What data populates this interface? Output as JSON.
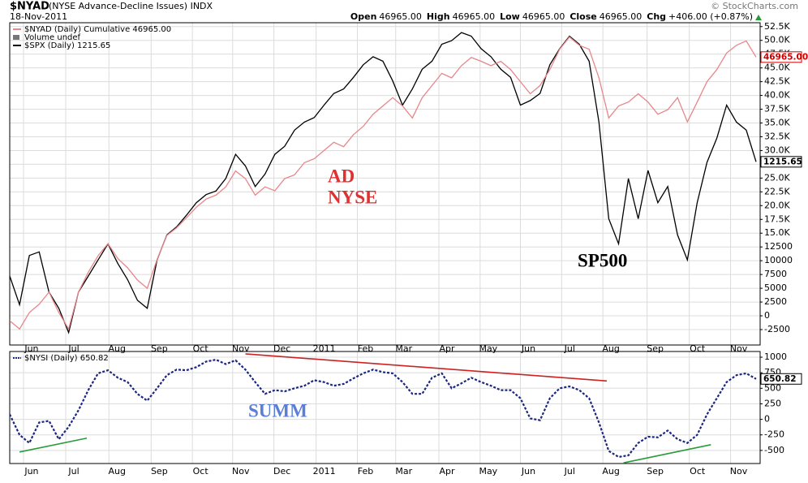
{
  "chart_data": [
    {
      "type": "line",
      "title": "$NYAD",
      "subtitle": "(NYSE Advance-Decline Issues) INDX",
      "date": "18-Nov-2011",
      "source": "© StockCharts.com",
      "quote": [
        {
          "label": "Open",
          "value": "46965.00"
        },
        {
          "label": "High",
          "value": "46965.00"
        },
        {
          "label": "Low",
          "value": "46965.00"
        },
        {
          "label": "Close",
          "value": "46965.00"
        },
        {
          "label": "Chg",
          "value": "+406.00 (+0.87%)"
        }
      ],
      "legend_notes": [
        "Volume undef"
      ],
      "grid": true,
      "xlim": [
        0,
        76
      ],
      "xticks": [
        {
          "value": 1.4,
          "label": "Jun"
        },
        {
          "value": 5.7,
          "label": "Jul"
        },
        {
          "value": 10.1,
          "label": "Aug"
        },
        {
          "value": 14.4,
          "label": "Sep"
        },
        {
          "value": 18.6,
          "label": "Oct"
        },
        {
          "value": 22.7,
          "label": "Nov"
        },
        {
          "value": 26.9,
          "label": "Dec"
        },
        {
          "value": 31.2,
          "label": "2011"
        },
        {
          "value": 35.4,
          "label": "Feb"
        },
        {
          "value": 39.3,
          "label": "Mar"
        },
        {
          "value": 43.7,
          "label": "Apr"
        },
        {
          "value": 47.9,
          "label": "May"
        },
        {
          "value": 52,
          "label": "Jun"
        },
        {
          "value": 56.2,
          "label": "Jul"
        },
        {
          "value": 60.4,
          "label": "Aug"
        },
        {
          "value": 64.9,
          "label": "Sep"
        },
        {
          "value": 69.2,
          "label": "Oct"
        },
        {
          "value": 73.4,
          "label": "Nov"
        }
      ],
      "ylim": [
        -5300,
        53200
      ],
      "yticks": [
        {
          "value": 52500,
          "label": "52.5K"
        },
        {
          "value": 50000,
          "label": "50.0K"
        },
        {
          "value": 47500,
          "label": "47.5K"
        },
        {
          "value": 45000,
          "label": "45.0K"
        },
        {
          "value": 42500,
          "label": "42.5K"
        },
        {
          "value": 40000,
          "label": "40.0K"
        },
        {
          "value": 37500,
          "label": "37.5K"
        },
        {
          "value": 35000,
          "label": "35.0K"
        },
        {
          "value": 32500,
          "label": "32.5K"
        },
        {
          "value": 30000,
          "label": "30.0K"
        },
        {
          "value": 27500,
          "label": "27.5K"
        },
        {
          "value": 25000,
          "label": "25.0K"
        },
        {
          "value": 22500,
          "label": "22.5K"
        },
        {
          "value": 20000,
          "label": "20.0K"
        },
        {
          "value": 17500,
          "label": "17.5K"
        },
        {
          "value": 15000,
          "label": "15.0K"
        },
        12500,
        10000,
        7500,
        5000,
        2500,
        0,
        -2500
      ],
      "y2lim": [
        1011,
        1371
      ],
      "series": [
        {
          "name": "$NYAD (Daily) Cumulative 46965.00",
          "color": "#e8868a",
          "last_label": "46965.00",
          "label_color": "#cc0000",
          "values": [
            -900,
            -2400,
            600,
            2100,
            4300,
            600,
            -2400,
            4300,
            7900,
            10900,
            13100,
            10400,
            8700,
            6500,
            5000,
            10200,
            14600,
            16000,
            17800,
            19700,
            21200,
            21900,
            23400,
            26300,
            24900,
            21900,
            23400,
            22700,
            24900,
            25600,
            27800,
            28500,
            30000,
            31500,
            30700,
            32900,
            34400,
            36600,
            38100,
            39600,
            38100,
            35900,
            39600,
            41800,
            44000,
            43200,
            45400,
            46900,
            46200,
            45400,
            46200,
            44700,
            42500,
            40300,
            41800,
            44700,
            48400,
            50600,
            49100,
            48400,
            43200,
            35900,
            38100,
            38800,
            40300,
            38800,
            36600,
            37400,
            39600,
            35200,
            38800,
            42500,
            44700,
            47700,
            49100,
            49900,
            46965
          ]
        },
        {
          "name": "$SPX (Daily) 1215.65",
          "color": "#000000",
          "axis": "y2",
          "last_label": "1215.65",
          "label_color": "#000000",
          "values": [
            1088,
            1056,
            1111,
            1115,
            1070,
            1052,
            1025,
            1070,
            1088,
            1106,
            1124,
            1102,
            1084,
            1061,
            1052,
            1106,
            1134,
            1143,
            1156,
            1170,
            1179,
            1183,
            1197,
            1224,
            1211,
            1188,
            1202,
            1224,
            1233,
            1251,
            1260,
            1265,
            1279,
            1292,
            1297,
            1310,
            1324,
            1333,
            1328,
            1306,
            1279,
            1297,
            1319,
            1328,
            1347,
            1351,
            1360,
            1356,
            1342,
            1333,
            1319,
            1310,
            1279,
            1284,
            1292,
            1324,
            1342,
            1356,
            1347,
            1328,
            1260,
            1152,
            1124,
            1197,
            1152,
            1206,
            1170,
            1188,
            1134,
            1106,
            1170,
            1215,
            1242,
            1279,
            1260,
            1251,
            1215.65
          ]
        }
      ],
      "annotations": [
        {
          "text": "AD",
          "color": "#e03030"
        },
        {
          "text": "NYSE",
          "color": "#e03030"
        },
        {
          "text": "SP500",
          "color": "#000000"
        }
      ]
    },
    {
      "type": "line",
      "grid": true,
      "xlim": [
        0,
        76
      ],
      "xticks": [
        {
          "value": 1.4,
          "label": "Jun"
        },
        {
          "value": 5.7,
          "label": "Jul"
        },
        {
          "value": 10.1,
          "label": "Aug"
        },
        {
          "value": 14.4,
          "label": "Sep"
        },
        {
          "value": 18.6,
          "label": "Oct"
        },
        {
          "value": 22.7,
          "label": "Nov"
        },
        {
          "value": 26.9,
          "label": "Dec"
        },
        {
          "value": 31.2,
          "label": "2011"
        },
        {
          "value": 35.4,
          "label": "Feb"
        },
        {
          "value": 39.3,
          "label": "Mar"
        },
        {
          "value": 43.7,
          "label": "Apr"
        },
        {
          "value": 47.9,
          "label": "May"
        },
        {
          "value": 52,
          "label": "Jun"
        },
        {
          "value": 56.2,
          "label": "Jul"
        },
        {
          "value": 60.4,
          "label": "Aug"
        },
        {
          "value": 64.9,
          "label": "Sep"
        },
        {
          "value": 69.2,
          "label": "Oct"
        },
        {
          "value": 73.4,
          "label": "Nov"
        }
      ],
      "ylim": [
        -711,
        1092
      ],
      "yticks": [
        1000,
        750,
        500,
        250,
        0,
        -250,
        -500
      ],
      "series": [
        {
          "name": "$NYSI (Daily) 650.82",
          "color": "#1c2680",
          "dashed": true,
          "last_label": "650.82",
          "label_color": "#000000",
          "values": [
            80,
            -250,
            -380,
            -50,
            -25,
            -320,
            -120,
            145,
            470,
            740,
            790,
            670,
            600,
            410,
            300,
            500,
            710,
            800,
            790,
            840,
            930,
            960,
            890,
            950,
            800,
            600,
            410,
            470,
            450,
            500,
            540,
            630,
            600,
            540,
            570,
            660,
            740,
            800,
            760,
            740,
            600,
            410,
            410,
            670,
            740,
            500,
            580,
            670,
            600,
            540,
            470,
            470,
            340,
            15,
            -15,
            340,
            500,
            530,
            470,
            340,
            -50,
            -510,
            -605,
            -580,
            -380,
            -280,
            -290,
            -180,
            -320,
            -380,
            -250,
            80,
            340,
            600,
            710,
            740,
            650.82
          ]
        }
      ],
      "trendlines": [
        {
          "color": "#cc2222",
          "x": [
            24,
            60.8
          ],
          "y": [
            1053,
            618
          ]
        },
        {
          "color": "#2a9a3a",
          "x": [
            1,
            7.85
          ],
          "y": [
            -526,
            -303
          ]
        },
        {
          "color": "#2a9a3a",
          "x": [
            62.5,
            71.4
          ],
          "y": [
            -700,
            -408
          ]
        }
      ],
      "annotations": [
        {
          "text": "SUMM",
          "color": "#5b7fd6"
        }
      ]
    }
  ]
}
